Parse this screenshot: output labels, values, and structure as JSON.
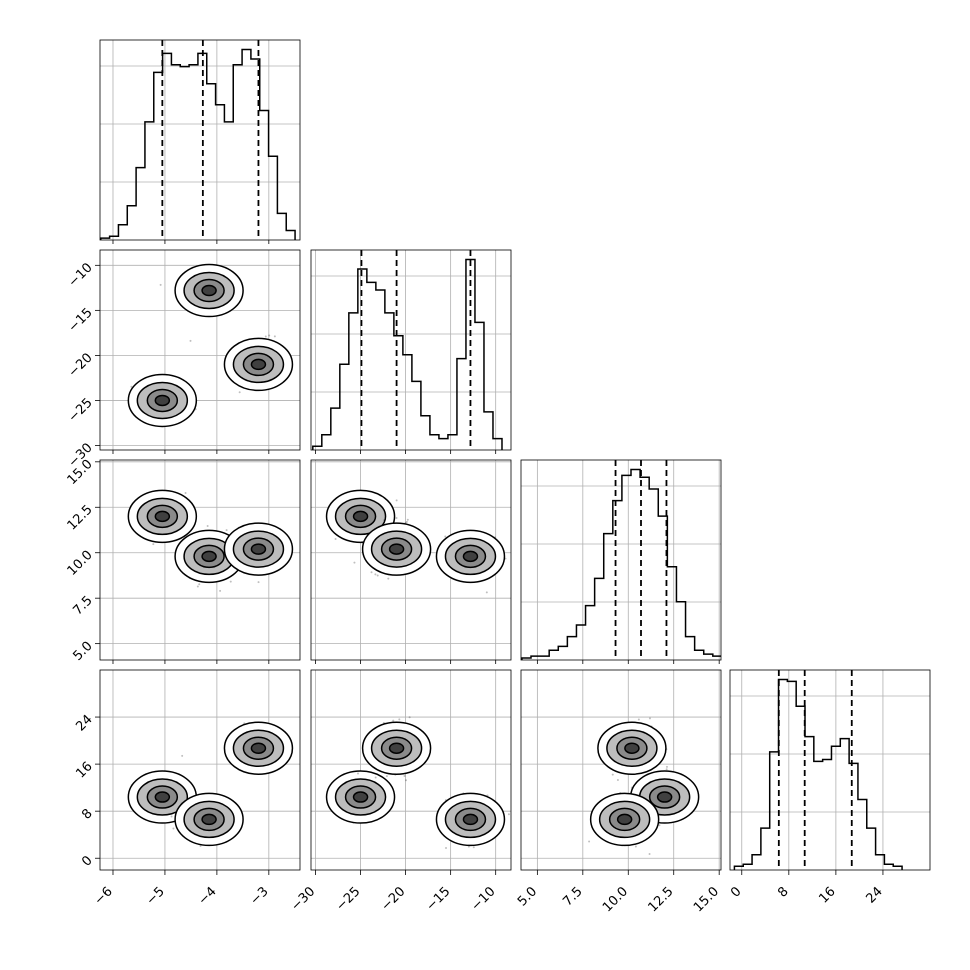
{
  "chart_data": {
    "type": "corner",
    "title": "",
    "grid": true,
    "parameters": [
      {
        "ticks": [
          -6,
          -5,
          -4,
          -3
        ],
        "tick_labels": [
          "−6",
          "−5",
          "−4",
          "−3"
        ],
        "range": [
          -6.25,
          -2.4
        ],
        "quantiles": [
          -5.05,
          -4.27,
          -3.2
        ],
        "hist_x": [
          -6.15,
          -5.98,
          -5.81,
          -5.64,
          -5.47,
          -5.3,
          -5.13,
          -4.96,
          -4.79,
          -4.62,
          -4.45,
          -4.28,
          -4.11,
          -3.94,
          -3.77,
          -3.6,
          -3.43,
          -3.26,
          -3.09,
          -2.92,
          -2.75,
          -2.58
        ],
        "hist_y": [
          1,
          2,
          8,
          18,
          38,
          62,
          88,
          98,
          92,
          91,
          92,
          98,
          82,
          71,
          62,
          92,
          100,
          95,
          68,
          44,
          14,
          5
        ]
      },
      {
        "ticks": [
          -30,
          -25,
          -20,
          -15,
          -10
        ],
        "tick_labels": [
          "−30",
          "−25",
          "−20",
          "−15",
          "−10"
        ],
        "range": [
          -30.5,
          -8.3
        ],
        "quantiles": [
          -24.9,
          -21.0,
          -12.8
        ],
        "hist_x": [
          -29.8,
          -28.8,
          -27.8,
          -26.8,
          -25.8,
          -24.8,
          -23.8,
          -22.8,
          -21.8,
          -20.8,
          -19.8,
          -18.8,
          -17.8,
          -16.8,
          -15.8,
          -14.8,
          -13.8,
          -12.8,
          -11.8,
          -10.8,
          -9.8
        ],
        "hist_y": [
          2,
          8,
          22,
          45,
          72,
          95,
          88,
          84,
          72,
          60,
          50,
          36,
          18,
          8,
          6,
          8,
          48,
          100,
          67,
          20,
          6
        ]
      },
      {
        "ticks": [
          5.0,
          7.5,
          10.0,
          12.5,
          15.0
        ],
        "tick_labels": [
          "5.0",
          "7.5",
          "10.0",
          "12.5",
          "15.0"
        ],
        "range": [
          4.1,
          15.1
        ],
        "quantiles": [
          9.3,
          10.7,
          12.1
        ],
        "hist_x": [
          4.4,
          4.9,
          5.4,
          5.9,
          6.4,
          6.9,
          7.4,
          7.9,
          8.4,
          8.9,
          9.4,
          9.9,
          10.4,
          10.9,
          11.4,
          11.9,
          12.4,
          12.9,
          13.4,
          13.9,
          14.4,
          14.9
        ],
        "hist_y": [
          1,
          2,
          2,
          5,
          7,
          12,
          18,
          28,
          42,
          65,
          82,
          95,
          98,
          94,
          88,
          74,
          48,
          30,
          12,
          5,
          3,
          2
        ]
      },
      {
        "ticks": [
          0,
          8,
          16,
          24
        ],
        "tick_labels": [
          "0",
          "8",
          "16",
          "24"
        ],
        "range": [
          -2,
          32
        ],
        "quantiles": [
          6.3,
          10.7,
          18.7
        ],
        "hist_x": [
          -0.5,
          1.0,
          2.5,
          4.0,
          5.5,
          7.0,
          8.5,
          10.0,
          11.5,
          13.0,
          14.5,
          16.0,
          17.5,
          19.0,
          20.5,
          22.0,
          23.5,
          25.0,
          26.5
        ],
        "hist_y": [
          2,
          3,
          8,
          22,
          62,
          100,
          99,
          86,
          70,
          57,
          58,
          65,
          69,
          56,
          37,
          22,
          8,
          3,
          2
        ]
      }
    ],
    "clusters": [
      [
        -5.05,
        -25.0,
        12.0,
        10.4
      ],
      [
        -4.15,
        -12.8,
        9.8,
        6.6
      ],
      [
        -3.2,
        -21.0,
        10.2,
        18.7
      ]
    ]
  }
}
